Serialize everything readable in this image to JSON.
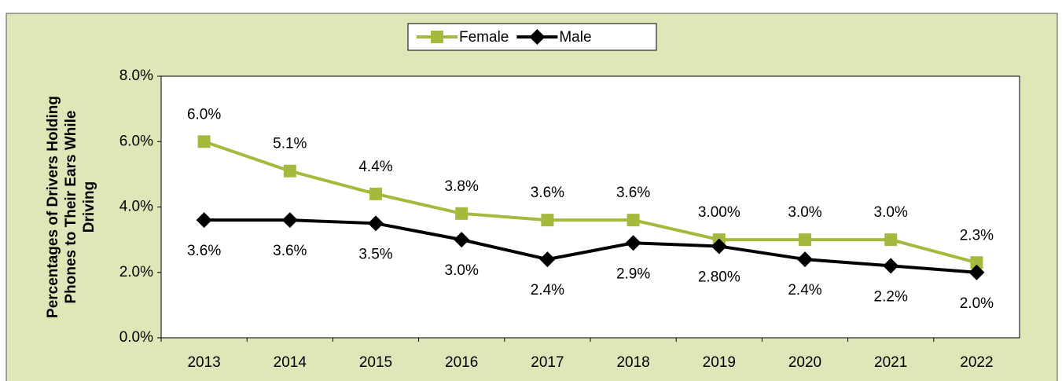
{
  "chart_data": {
    "type": "line",
    "ylabel": [
      "Percentages of Drivers Holding",
      "Phones to Their Ears While",
      "Driving"
    ],
    "categories": [
      "2013",
      "2014",
      "2015",
      "2016",
      "2017",
      "2018",
      "2019",
      "2020",
      "2021",
      "2022"
    ],
    "series": [
      {
        "name": "Female",
        "color": "#a5b93c",
        "marker": "square",
        "values": [
          6.0,
          5.1,
          4.4,
          3.8,
          3.6,
          3.6,
          3.0,
          3.0,
          3.0,
          2.3
        ],
        "value_labels": [
          "6.0%",
          "5.1%",
          "4.4%",
          "3.8%",
          "3.6%",
          "3.6%",
          "3.00%",
          "3.0%",
          "3.0%",
          "2.3%"
        ]
      },
      {
        "name": "Male",
        "color": "#000000",
        "marker": "diamond",
        "values": [
          3.6,
          3.6,
          3.5,
          3.0,
          2.4,
          2.9,
          2.8,
          2.4,
          2.2,
          2.0
        ],
        "value_labels": [
          "3.6%",
          "3.6%",
          "3.5%",
          "3.0%",
          "2.4%",
          "2.9%",
          "2.80%",
          "2.4%",
          "2.2%",
          "2.0%"
        ]
      }
    ],
    "ylim": [
      0,
      8
    ],
    "yticks": [
      {
        "value": 0,
        "label": "0.0%"
      },
      {
        "value": 2,
        "label": "2.0%"
      },
      {
        "value": 4,
        "label": "4.0%"
      },
      {
        "value": 6,
        "label": "6.0%"
      },
      {
        "value": 8,
        "label": "8.0%"
      }
    ],
    "legend": "top"
  }
}
